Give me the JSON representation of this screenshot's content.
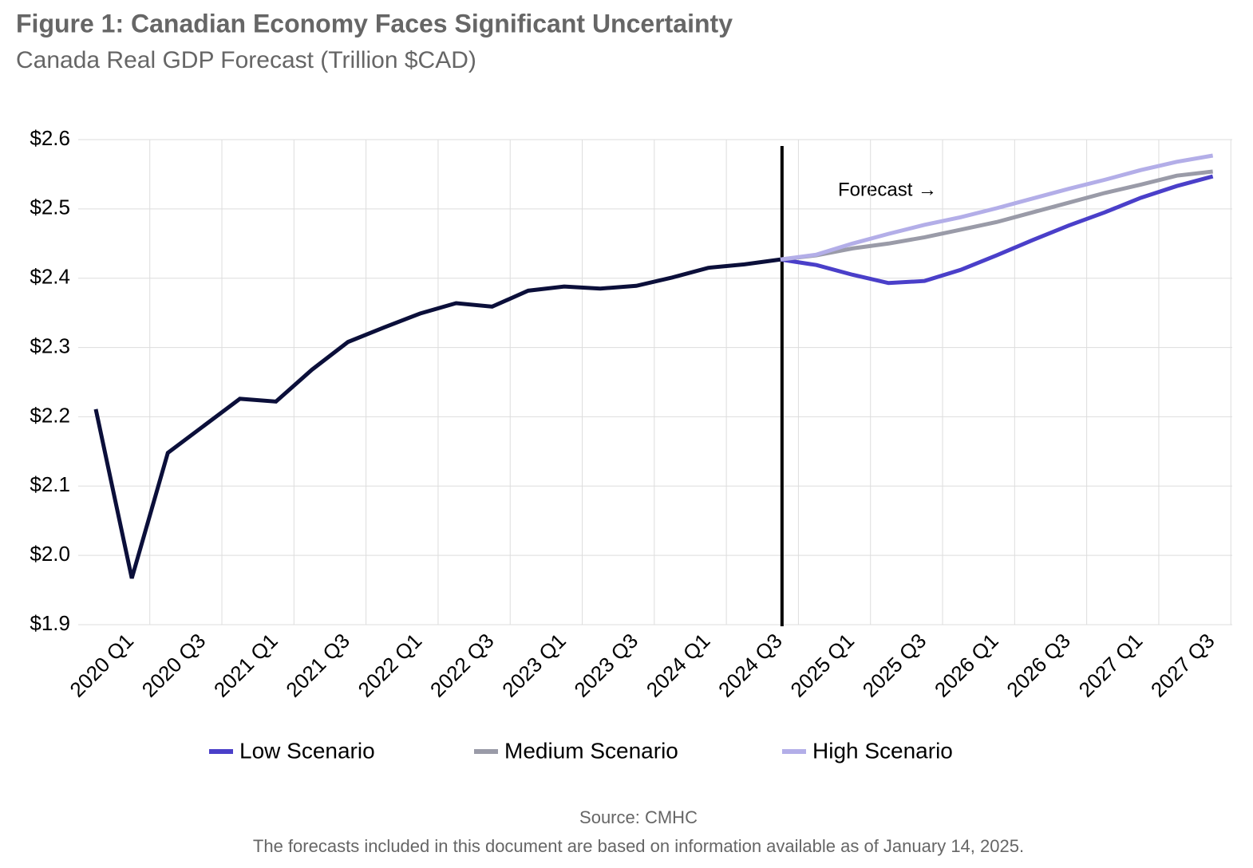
{
  "chart_data": {
    "type": "line",
    "title": "Figure 1: Canadian Economy Faces Significant Uncertainty",
    "subtitle": "Canada Real GDP Forecast (Trillion $CAD)",
    "annotation": "Forecast →",
    "source": "Source: CMHC",
    "note": "The forecasts included in this document are based on information available as of January 14, 2025.",
    "categories": [
      "2020 Q1",
      null,
      "2020 Q3",
      null,
      "2021 Q1",
      null,
      "2021 Q3",
      null,
      "2022 Q1",
      null,
      "2022 Q3",
      null,
      "2023 Q1",
      null,
      "2023 Q3",
      null,
      "2024 Q1",
      null,
      "2024 Q3",
      null,
      "2025 Q1",
      null,
      "2025 Q3",
      null,
      "2026 Q1",
      null,
      "2026 Q3",
      null,
      "2027 Q1",
      null,
      "2027 Q3",
      null
    ],
    "ylim": [
      1.9,
      2.6
    ],
    "yticks": [
      {
        "value": 1.9,
        "label": "$1.9"
      },
      {
        "value": 2.0,
        "label": "$2.0"
      },
      {
        "value": 2.1,
        "label": "$2.1"
      },
      {
        "value": 2.2,
        "label": "$2.2"
      },
      {
        "value": 2.3,
        "label": "$2.3"
      },
      {
        "value": 2.4,
        "label": "$2.4"
      },
      {
        "value": 2.5,
        "label": "$2.5"
      },
      {
        "value": 2.6,
        "label": "$2.6"
      }
    ],
    "grid": true,
    "series": [
      {
        "color": "#0b0f3a",
        "values": [
          2.211,
          1.967,
          2.148,
          2.187,
          2.226,
          2.222,
          2.268,
          2.308,
          2.329,
          2.349,
          2.364,
          2.359,
          2.382,
          2.388,
          2.385,
          2.389,
          2.401,
          2.415,
          2.42,
          2.427,
          null,
          null,
          null,
          null,
          null,
          null,
          null,
          null,
          null,
          null,
          null,
          null
        ]
      },
      {
        "name": "Low Scenario",
        "color": "#4a3fc9",
        "values": [
          null,
          null,
          null,
          null,
          null,
          null,
          null,
          null,
          null,
          null,
          null,
          null,
          null,
          null,
          null,
          null,
          null,
          null,
          null,
          2.427,
          2.419,
          2.405,
          2.393,
          2.396,
          2.412,
          2.433,
          2.455,
          2.476,
          2.495,
          2.516,
          2.533,
          2.547
        ]
      },
      {
        "name": "Medium Scenario",
        "color": "#9a9ba8",
        "values": [
          null,
          null,
          null,
          null,
          null,
          null,
          null,
          null,
          null,
          null,
          null,
          null,
          null,
          null,
          null,
          null,
          null,
          null,
          null,
          2.427,
          2.433,
          2.443,
          2.45,
          2.459,
          2.47,
          2.481,
          2.495,
          2.509,
          2.523,
          2.535,
          2.548,
          2.554
        ]
      },
      {
        "name": "High Scenario",
        "color": "#b3aee8",
        "values": [
          null,
          null,
          null,
          null,
          null,
          null,
          null,
          null,
          null,
          null,
          null,
          null,
          null,
          null,
          null,
          null,
          null,
          null,
          null,
          2.427,
          2.434,
          2.45,
          2.464,
          2.477,
          2.488,
          2.501,
          2.515,
          2.529,
          2.542,
          2.556,
          2.568,
          2.577
        ]
      }
    ]
  }
}
